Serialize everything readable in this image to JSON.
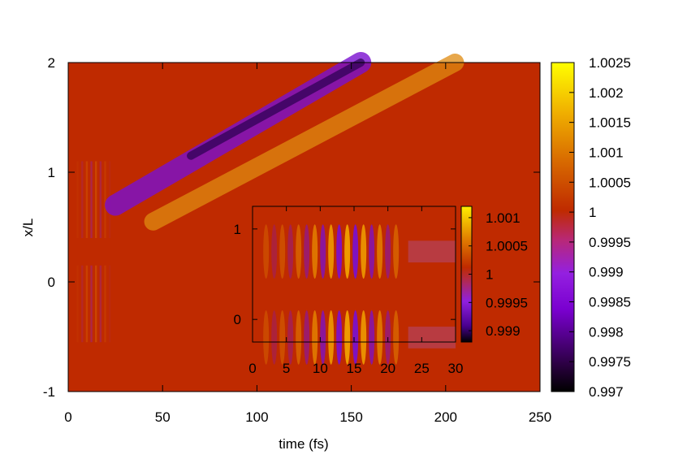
{
  "chart_data": [
    {
      "type": "heatmap",
      "title": "",
      "xlabel": "time (fs)",
      "ylabel": "x/L",
      "xlim": [
        0,
        250
      ],
      "ylim": [
        -1,
        2
      ],
      "x_ticks": [
        "0",
        "50",
        "100",
        "150",
        "200",
        "250"
      ],
      "y_ticks": [
        "-1",
        "0",
        "1",
        "2"
      ],
      "colorbar": {
        "range": [
          0.997,
          1.0025
        ],
        "ticks": [
          "0.997",
          "0.9975",
          "0.998",
          "0.9985",
          "0.999",
          "0.9995",
          "1",
          "1.0005",
          "1.001",
          "1.0015",
          "1.002",
          "1.0025"
        ]
      },
      "features": {
        "background_value": 1.0,
        "diagonal_band_trough": {
          "start": [
            25,
            0.7
          ],
          "end": [
            155,
            2.0
          ],
          "min_value": 0.997
        },
        "diagonal_band_crest": {
          "offset_fs": 20,
          "max_value": 1.0012
        },
        "early_ripples": {
          "t_range": [
            5,
            22
          ],
          "x_centers": [
            -0.2,
            0.75
          ]
        }
      }
    },
    {
      "type": "heatmap",
      "title": "",
      "xlabel": "",
      "ylabel": "",
      "xlim": [
        0,
        30
      ],
      "ylim": [
        -0.25,
        1.25
      ],
      "x_ticks": [
        "0",
        "5",
        "10",
        "15",
        "20",
        "25",
        "30"
      ],
      "y_ticks": [
        "0",
        "1"
      ],
      "colorbar": {
        "range": [
          0.9988,
          1.0012
        ],
        "ticks": [
          "0.999",
          "0.9995",
          "1",
          "1.0005",
          "1.001"
        ]
      },
      "features": {
        "background_value": 1.0,
        "oscillation_period_fs": 2.4,
        "peak_time_fs": 14,
        "x_centers": [
          -0.2,
          0.75
        ]
      }
    }
  ]
}
